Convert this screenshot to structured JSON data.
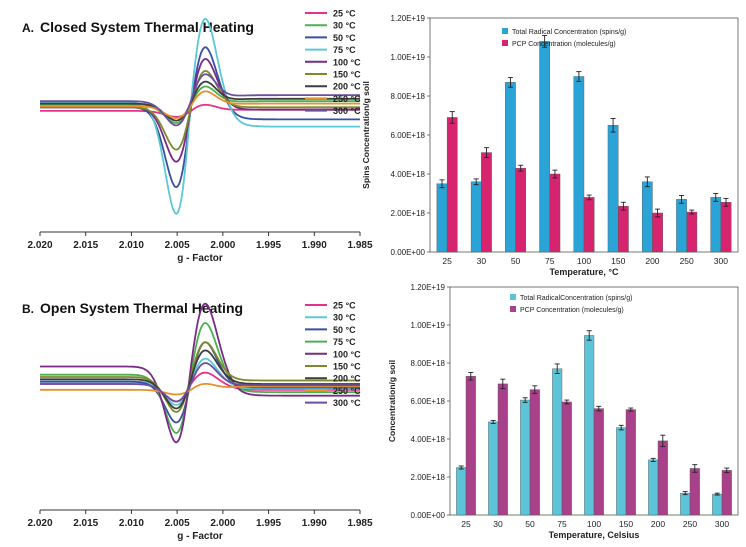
{
  "chart_data": [
    {
      "type": "line",
      "panel_label": "A.",
      "title": "Closed System Thermal Heating",
      "xlabel": "g - Factor",
      "xlim": [
        2.02,
        1.985
      ],
      "x_ticks": [
        "2.020",
        "2.015",
        "2.010",
        "2.005",
        "2.000",
        "1.995",
        "1.990",
        "1.985"
      ],
      "legend_position": "top-right",
      "series": [
        {
          "name": "25 °C",
          "color": "#e8308a",
          "offset": 0.0,
          "peak": 0.5,
          "trough": -0.5,
          "tail": 0.1
        },
        {
          "name": "30 °C",
          "color": "#4caf50",
          "offset": 0.5,
          "peak": 1.5,
          "trough": -1.5,
          "tail": 0.3
        },
        {
          "name": "50 °C",
          "color": "#3a4fa3",
          "offset": 0.3,
          "peak": 5.0,
          "trough": -6.6,
          "tail": -1.0
        },
        {
          "name": "75 °C",
          "color": "#5bc8d6",
          "offset": 0.7,
          "peak": 7.0,
          "trough": -9.2,
          "tail": -2.0
        },
        {
          "name": "100 °C",
          "color": "#7a2a86",
          "offset": 0.3,
          "peak": 4.0,
          "trough": -4.5,
          "tail": -0.2
        },
        {
          "name": "150 °C",
          "color": "#7d8b2a",
          "offset": 0.3,
          "peak": 3.0,
          "trough": -3.5,
          "tail": 0.0
        },
        {
          "name": "200 °C",
          "color": "#3d3d3d",
          "offset": 0.6,
          "peak": 1.8,
          "trough": -1.4,
          "tail": 0.4
        },
        {
          "name": "250 °C",
          "color": "#e8902a",
          "offset": 0.4,
          "peak": 1.2,
          "trough": -1.0,
          "tail": 0.2
        },
        {
          "name": "300 °C",
          "color": "#6b4fa0",
          "offset": 0.8,
          "peak": 2.2,
          "trough": -2.0,
          "tail": 0.5
        }
      ]
    },
    {
      "type": "bar",
      "categories": [
        "25",
        "30",
        "50",
        "75",
        "100",
        "150",
        "200",
        "250",
        "300"
      ],
      "xlabel": "Temperature, °C",
      "ylabel": "Spins Concentration/g soil",
      "ylim": [
        0,
        1.2e+19
      ],
      "y_ticks": [
        "0.00E+00",
        "2.00E+18",
        "4.00E+18",
        "6.00E+18",
        "8.00E+18",
        "1.00E+19",
        "1.20E+19"
      ],
      "legend_position": "top-right",
      "series": [
        {
          "name": "Total Radical Concentration (spins/g)",
          "color": "#2aa3d6",
          "values": [
            3.5e+18,
            3.6e+18,
            8.7e+18,
            1.08e+19,
            9e+18,
            6.5e+18,
            3.6e+18,
            2.7e+18,
            2.8e+18
          ],
          "errors": [
            2e+17,
            1.5e+17,
            2.5e+17,
            3e+17,
            2.5e+17,
            3.5e+17,
            2.5e+17,
            2e+17,
            2e+17
          ]
        },
        {
          "name": "PCP Concentration (molecules/g)",
          "color": "#d6246f",
          "values": [
            6.9e+18,
            5.1e+18,
            4.3e+18,
            4e+18,
            2.8e+18,
            2.35e+18,
            2e+18,
            2.05e+18,
            2.55e+18
          ],
          "errors": [
            3e+17,
            2.5e+17,
            1.5e+17,
            2e+17,
            1.2e+17,
            2e+17,
            2e+17,
            1e+17,
            2e+17
          ]
        }
      ]
    },
    {
      "type": "line",
      "panel_label": "B.",
      "title": "Open System Thermal Heating",
      "xlabel": "g - Factor",
      "xlim": [
        2.02,
        1.985
      ],
      "x_ticks": [
        "2.020",
        "2.015",
        "2.010",
        "2.005",
        "2.000",
        "1.995",
        "1.990",
        "1.985"
      ],
      "legend_position": "top-right",
      "series": [
        {
          "name": "25 °C",
          "color": "#e8308a",
          "offset": 0.8,
          "peak": 1.0,
          "trough": -1.5,
          "tail": -0.5
        },
        {
          "name": "30 °C",
          "color": "#5bc8d6",
          "offset": 1.0,
          "peak": 2.0,
          "trough": -2.0,
          "tail": -0.6
        },
        {
          "name": "50 °C",
          "color": "#3a4fa3",
          "offset": 1.0,
          "peak": 3.4,
          "trough": -3.5,
          "tail": -0.5
        },
        {
          "name": "75 °C",
          "color": "#4caf50",
          "offset": 1.6,
          "peak": 4.5,
          "trough": -5.0,
          "tail": -1.5
        },
        {
          "name": "100 °C",
          "color": "#7a2a86",
          "offset": 2.3,
          "peak": 5.5,
          "trough": -6.5,
          "tail": -2.5
        },
        {
          "name": "150 °C",
          "color": "#7d8b2a",
          "offset": 1.4,
          "peak": 3.0,
          "trough": -3.0,
          "tail": -0.3
        },
        {
          "name": "200 °C",
          "color": "#3d3d3d",
          "offset": 1.2,
          "peak": 2.5,
          "trough": -2.5,
          "tail": -0.4
        },
        {
          "name": "250 °C",
          "color": "#e8902a",
          "offset": 0.3,
          "peak": 0.5,
          "trough": -0.4,
          "tail": 0.3
        },
        {
          "name": "300 °C",
          "color": "#6b4fa0",
          "offset": 0.8,
          "peak": 1.8,
          "trough": -1.5,
          "tail": -0.1
        }
      ]
    },
    {
      "type": "bar",
      "categories": [
        "25",
        "30",
        "50",
        "75",
        "100",
        "150",
        "200",
        "250",
        "300"
      ],
      "xlabel": "Temperature, Celsius",
      "ylabel": "Concentration/g soil",
      "ylim": [
        0,
        1.2e+19
      ],
      "y_ticks": [
        "0.00E+00",
        "2.00E+18",
        "4.00E+18",
        "6.00E+18",
        "8.00E+18",
        "1.00E+19",
        "1.20E+19"
      ],
      "legend_position": "top-right",
      "series": [
        {
          "name": "Total RadicalConcentration (spins/g)",
          "color": "#5cc4d6",
          "values": [
            2.5e+18,
            4.9e+18,
            6.05e+18,
            7.7e+18,
            9.45e+18,
            4.6e+18,
            2.9e+18,
            1.15e+18,
            1.1e+18
          ],
          "errors": [
            8e+16,
            8e+16,
            1.2e+17,
            2.5e+17,
            2.5e+17,
            1.2e+17,
            8e+16,
            8e+16,
            5e+16
          ]
        },
        {
          "name": "PCP Concentration (molecules/g)",
          "color": "#a8408a",
          "values": [
            7.3e+18,
            6.9e+18,
            6.6e+18,
            5.95e+18,
            5.6e+18,
            5.55e+18,
            3.9e+18,
            2.45e+18,
            2.35e+18
          ],
          "errors": [
            2e+17,
            2.5e+17,
            2e+17,
            1e+17,
            1.2e+17,
            8e+16,
            3e+17,
            2e+17,
            1.2e+17
          ]
        }
      ]
    }
  ]
}
